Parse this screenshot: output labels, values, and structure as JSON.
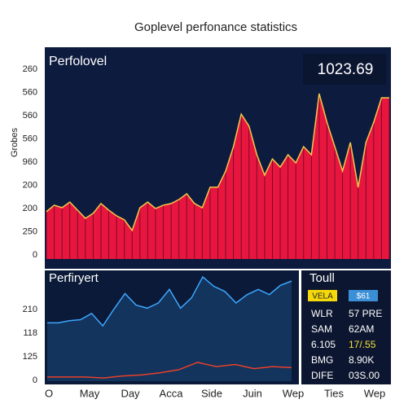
{
  "header": {
    "title": "Goplevel perfonance statistics"
  },
  "chart_data": [
    {
      "type": "area",
      "title": "Perfolovel",
      "annotation": "1023.69",
      "y_label": "Grobes",
      "y_labels": [
        "260",
        "560",
        "560",
        "560",
        "960",
        "200",
        "200",
        "250",
        "0"
      ],
      "ylim": [
        0,
        1000
      ],
      "color": "#e8163f",
      "line_color": "#f2c84b",
      "values": [
        227,
        258,
        246,
        273,
        234,
        195,
        219,
        266,
        234,
        207,
        188,
        137,
        246,
        273,
        242,
        258,
        266,
        285,
        313,
        266,
        246,
        344,
        344,
        422,
        539,
        695,
        637,
        500,
        402,
        480,
        441,
        500,
        461,
        539,
        500,
        793,
        656,
        539,
        422,
        559,
        344,
        559,
        656,
        773,
        773
      ]
    },
    {
      "type": "line",
      "title": "Perfiryert",
      "y_labels": [
        "210",
        "118",
        "125",
        "0"
      ],
      "ylim": [
        0,
        100
      ],
      "series": [
        {
          "color": "#3ea6ff",
          "values": [
            56,
            56,
            58,
            59,
            65,
            53,
            69,
            84,
            73,
            70,
            75,
            88,
            70,
            80,
            100,
            91,
            86,
            75,
            83,
            88,
            83,
            92,
            96
          ]
        },
        {
          "color": "#e8402a",
          "values": [
            4,
            4,
            4,
            3,
            5,
            6,
            8,
            11,
            18,
            14,
            16,
            12,
            14,
            13
          ]
        }
      ]
    }
  ],
  "x_labels": [
    "O",
    "May",
    "Day",
    "Acca",
    "Side",
    "Juin",
    "Wep",
    "Ties",
    "Wep"
  ],
  "panel": {
    "title": "Toull",
    "badges": [
      "VELA",
      "$61"
    ],
    "rows": [
      [
        "WLR",
        "57 PRE"
      ],
      [
        "SAM",
        "62AM"
      ],
      [
        "6.105",
        "17/.55"
      ],
      [
        "BMG",
        "8.90K"
      ],
      [
        "DIFE",
        "03S.00"
      ]
    ]
  }
}
